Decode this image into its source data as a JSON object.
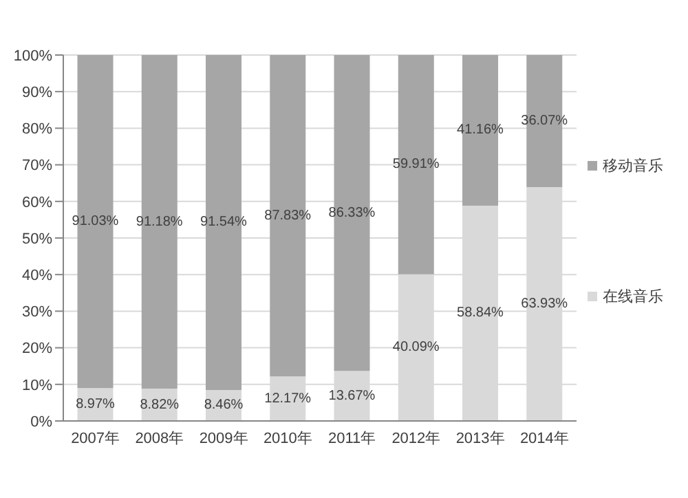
{
  "chart_data": {
    "type": "bar",
    "stacked": true,
    "categories": [
      "2007年",
      "2008年",
      "2009年",
      "2010年",
      "2011年",
      "2012年",
      "2013年",
      "2014年"
    ],
    "series": [
      {
        "name": "在线音乐",
        "color": "#d9d9d9",
        "values": [
          8.97,
          8.82,
          8.46,
          12.17,
          13.67,
          40.09,
          58.84,
          63.93
        ],
        "value_labels": [
          "8.97%",
          "8.82%",
          "8.46%",
          "12.17%",
          "13.67%",
          "40.09%",
          "58.84%",
          "63.93%"
        ]
      },
      {
        "name": "移动音乐",
        "color": "#a6a6a6",
        "values": [
          91.03,
          91.18,
          91.54,
          87.83,
          86.33,
          59.91,
          41.16,
          36.07
        ],
        "value_labels": [
          "91.03%",
          "91.18%",
          "91.54%",
          "87.83%",
          "86.33%",
          "59.91%",
          "41.16%",
          "36.07%"
        ]
      }
    ],
    "ylim": [
      0,
      100
    ],
    "yticks": [
      {
        "value": 0,
        "label": "0%"
      },
      {
        "value": 10,
        "label": "10%"
      },
      {
        "value": 20,
        "label": "20%"
      },
      {
        "value": 30,
        "label": "30%"
      },
      {
        "value": 40,
        "label": "40%"
      },
      {
        "value": 50,
        "label": "50%"
      },
      {
        "value": 60,
        "label": "60%"
      },
      {
        "value": 70,
        "label": "70%"
      },
      {
        "value": 80,
        "label": "80%"
      },
      {
        "value": 90,
        "label": "90%"
      },
      {
        "value": 100,
        "label": "100%"
      }
    ],
    "grid": "y",
    "legend": "right"
  }
}
